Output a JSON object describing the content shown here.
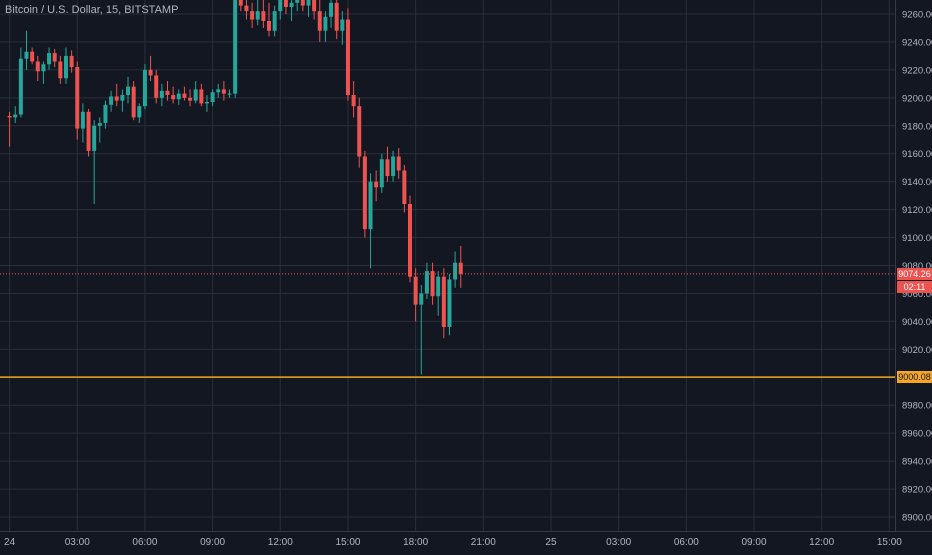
{
  "header": {
    "symbol_title": "Bitcoin / U.S. Dollar, 15, BITSTAMP"
  },
  "colors": {
    "background": "#131722",
    "grid": "#2a2e39",
    "up": "#26a69a",
    "down": "#ef5350",
    "axis_text": "#b2b5be",
    "hline": "#f5a623"
  },
  "price_tag": {
    "price": "9074.26",
    "countdown": "02:11"
  },
  "hline_tag": {
    "price_label": "9000.08",
    "price": 9000.08
  },
  "chart_data": {
    "type": "candlestick",
    "y_ticks": [
      "8900.00",
      "8920.00",
      "8940.00",
      "8960.00",
      "8980.00",
      "9000.00",
      "9020.00",
      "9040.00",
      "9060.00",
      "9080.00",
      "9100.00",
      "9120.00",
      "9140.00",
      "9160.00",
      "9180.00",
      "9200.00",
      "9220.00",
      "9240.00",
      "9260.00"
    ],
    "y_tick_values": [
      8900,
      8920,
      8940,
      8960,
      8980,
      9000,
      9020,
      9040,
      9060,
      9080,
      9100,
      9120,
      9140,
      9160,
      9180,
      9200,
      9220,
      9240,
      9260
    ],
    "ylim": [
      8890,
      9270
    ],
    "x_ticks": [
      "24",
      "03:00",
      "06:00",
      "09:00",
      "12:00",
      "15:00",
      "18:00",
      "21:00",
      "25",
      "03:00",
      "06:00",
      "09:00",
      "12:00",
      "15:00"
    ],
    "x_tick_index": [
      0,
      12,
      24,
      36,
      48,
      60,
      72,
      84,
      96,
      108,
      120,
      132,
      144,
      156
    ],
    "x_range": [
      -1.7,
      157
    ],
    "grid": true,
    "candles": [
      [
        9187,
        9190,
        9165,
        9186
      ],
      [
        9186,
        9194,
        9182,
        9188
      ],
      [
        9188,
        9236,
        9186,
        9228
      ],
      [
        9228,
        9248,
        9220,
        9233
      ],
      [
        9233,
        9236,
        9224,
        9226
      ],
      [
        9226,
        9230,
        9212,
        9219
      ],
      [
        9219,
        9226,
        9210,
        9224
      ],
      [
        9224,
        9236,
        9220,
        9232
      ],
      [
        9232,
        9235,
        9222,
        9226
      ],
      [
        9226,
        9230,
        9210,
        9214
      ],
      [
        9214,
        9236,
        9210,
        9230
      ],
      [
        9230,
        9234,
        9218,
        9222
      ],
      [
        9222,
        9226,
        9170,
        9178
      ],
      [
        9178,
        9196,
        9168,
        9190
      ],
      [
        9190,
        9192,
        9158,
        9162
      ],
      [
        9162,
        9184,
        9124,
        9180
      ],
      [
        9180,
        9186,
        9168,
        9182
      ],
      [
        9182,
        9198,
        9178,
        9195
      ],
      [
        9195,
        9205,
        9190,
        9201
      ],
      [
        9201,
        9210,
        9194,
        9198
      ],
      [
        9198,
        9206,
        9190,
        9202
      ],
      [
        9202,
        9215,
        9196,
        9208
      ],
      [
        9208,
        9212,
        9184,
        9186
      ],
      [
        9186,
        9196,
        9182,
        9194
      ],
      [
        9194,
        9224,
        9192,
        9220
      ],
      [
        9220,
        9230,
        9212,
        9216
      ],
      [
        9216,
        9220,
        9196,
        9200
      ],
      [
        9200,
        9210,
        9194,
        9205
      ],
      [
        9205,
        9212,
        9198,
        9202
      ],
      [
        9202,
        9208,
        9196,
        9199
      ],
      [
        9199,
        9206,
        9195,
        9203
      ],
      [
        9203,
        9208,
        9198,
        9200
      ],
      [
        9200,
        9206,
        9194,
        9198
      ],
      [
        9198,
        9212,
        9196,
        9206
      ],
      [
        9206,
        9210,
        9194,
        9196
      ],
      [
        9196,
        9202,
        9190,
        9197
      ],
      [
        9197,
        9206,
        9194,
        9204
      ],
      [
        9204,
        9210,
        9200,
        9206
      ],
      [
        9206,
        9212,
        9198,
        9203
      ],
      [
        9203,
        9206,
        9200,
        9203
      ],
      [
        9203,
        9275,
        9200,
        9270
      ],
      [
        9270,
        9276,
        9262,
        9266
      ],
      [
        9266,
        9274,
        9256,
        9262
      ],
      [
        9262,
        9268,
        9250,
        9256
      ],
      [
        9256,
        9270,
        9252,
        9262
      ],
      [
        9262,
        9272,
        9250,
        9255
      ],
      [
        9255,
        9268,
        9244,
        9248
      ],
      [
        9248,
        9266,
        9244,
        9262
      ],
      [
        9262,
        9275,
        9256,
        9270
      ],
      [
        9270,
        9276,
        9260,
        9265
      ],
      [
        9265,
        9274,
        9255,
        9268
      ],
      [
        9268,
        9278,
        9262,
        9272
      ],
      [
        9272,
        9276,
        9262,
        9266
      ],
      [
        9266,
        9278,
        9258,
        9272
      ],
      [
        9272,
        9276,
        9256,
        9262
      ],
      [
        9262,
        9270,
        9240,
        9248
      ],
      [
        9248,
        9262,
        9240,
        9258
      ],
      [
        9258,
        9275,
        9250,
        9268
      ],
      [
        9268,
        9272,
        9242,
        9248
      ],
      [
        9248,
        9262,
        9238,
        9256
      ],
      [
        9256,
        9264,
        9198,
        9202
      ],
      [
        9202,
        9212,
        9186,
        9194
      ],
      [
        9194,
        9200,
        9150,
        9158
      ],
      [
        9158,
        9162,
        9100,
        9106
      ],
      [
        9106,
        9146,
        9078,
        9140
      ],
      [
        9140,
        9148,
        9126,
        9136
      ],
      [
        9136,
        9160,
        9132,
        9156
      ],
      [
        9156,
        9165,
        9140,
        9144
      ],
      [
        9144,
        9162,
        9140,
        9158
      ],
      [
        9158,
        9164,
        9142,
        9148
      ],
      [
        9148,
        9152,
        9118,
        9124
      ],
      [
        9124,
        9130,
        9068,
        9072
      ],
      [
        9072,
        9078,
        9040,
        9052
      ],
      [
        9052,
        9066,
        9002,
        9060
      ],
      [
        9060,
        9082,
        9056,
        9076
      ],
      [
        9076,
        9082,
        9052,
        9058
      ],
      [
        9058,
        9076,
        9044,
        9072
      ],
      [
        9072,
        9078,
        9028,
        9036
      ],
      [
        9036,
        9074,
        9030,
        9070
      ],
      [
        9070,
        9090,
        9064,
        9082
      ],
      [
        9082,
        9094,
        9064,
        9074
      ]
    ]
  }
}
